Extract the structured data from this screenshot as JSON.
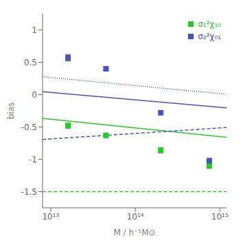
{
  "chart_data": {
    "type": "scatter",
    "xlabel": "M / h⁻¹M⊙",
    "ylabel": "bias",
    "log": "x",
    "legend": "upper right",
    "xlim": [
      8000000000000.0,
      1200000000000000.0
    ],
    "xticks": [
      {
        "value": 10000000000000.0,
        "label": "10¹³"
      },
      {
        "value": 100000000000000.0,
        "label": "10¹⁴"
      },
      {
        "value": 1000000000000000.0,
        "label": "10¹⁵"
      }
    ],
    "ylim": [
      -1.75,
      1.25
    ],
    "yticks": [
      -1.5,
      -1,
      -0.5,
      0,
      0.5,
      1
    ],
    "series": [
      {
        "type": "line",
        "color": "#22cc22",
        "line_style": "solid",
        "x": [
          8000000000000.0,
          1200000000000000.0
        ],
        "values": [
          -0.366917148,
          -0.660689468
        ]
      },
      {
        "type": "line",
        "color": "#22cc22",
        "line_style": "dashed",
        "x": [
          8000000000000.0,
          1200000000000000.0
        ],
        "values": [
          -1.5,
          -1.5
        ]
      },
      {
        "type": "line",
        "color": "#4455bb",
        "line_style": "solid",
        "x": [
          8000000000000.0,
          1200000000000000.0
        ],
        "values": [
          0.0461446515,
          -0.2041058433
        ]
      },
      {
        "type": "line",
        "color": "#4455bb",
        "line_style": "dashed",
        "x": [
          8000000000000.0,
          1200000000000000.0
        ],
        "values": [
          -0.6932373511,
          -0.5082695941
        ]
      },
      {
        "type": "line",
        "color": "#4455bb",
        "line_style": "dotted",
        "x": [
          8000000000000.0,
          1200000000000000.0
        ],
        "values": [
          0.2771137516,
          0.0051023442
        ]
      },
      {
        "name": "σ₁²χ₁₀",
        "type": "scatter",
        "marker": "square",
        "color": "#22cc22",
        "x": [
          16000000000000.0,
          45000000000000.0,
          200000000000000.0,
          750000000000000.0
        ],
        "values": [
          -0.48,
          -0.63,
          -0.86,
          -1.1
        ],
        "errors": [
          0.04,
          0.035,
          0.04,
          0.04
        ]
      },
      {
        "name": "σ₂²χ₀₁",
        "type": "scatter",
        "marker": "square",
        "color": "#4455bb",
        "x": [
          16000000000000.0,
          45000000000000.0,
          200000000000000.0,
          750000000000000.0
        ],
        "values": [
          0.57,
          0.4,
          -0.28,
          -1.02
        ],
        "errors": [
          0.05,
          0.03,
          0.025,
          0.03
        ]
      }
    ]
  }
}
